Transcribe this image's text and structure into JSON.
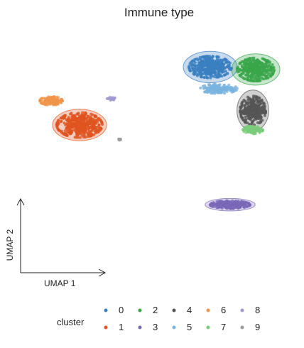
{
  "chart_data": {
    "type": "scatter",
    "title": "Immune type",
    "xlabel": "UMAP 1",
    "ylabel": "UMAP 2",
    "xlim": [
      0,
      100
    ],
    "ylim": [
      0,
      100
    ],
    "grid": false,
    "legend": {
      "title": "cluster",
      "placement": "bottom",
      "entries": [
        "0",
        "1",
        "2",
        "3",
        "4",
        "5",
        "6",
        "7",
        "8",
        "9"
      ]
    },
    "series": [
      {
        "name": "0",
        "color": "#3a7fc1",
        "cx": 69,
        "cy": 84,
        "rx": 7.5,
        "ry": 4.5,
        "n": 420,
        "hull": true,
        "hull_rx": 9.5,
        "hull_ry": 6.5
      },
      {
        "name": "1",
        "color": "#e0541f",
        "cx": 23,
        "cy": 60,
        "rx": 8,
        "ry": 5.2,
        "n": 420,
        "hull": true,
        "hull_rx": 9.5,
        "hull_ry": 6.5
      },
      {
        "name": "2",
        "color": "#3aa64a",
        "cx": 85,
        "cy": 83,
        "rx": 6.5,
        "ry": 4.8,
        "n": 380,
        "hull": true,
        "hull_rx": 8.5,
        "hull_ry": 6.5
      },
      {
        "name": "3",
        "color": "#7a68b8",
        "cx": 76,
        "cy": 27,
        "rx": 7,
        "ry": 1.6,
        "n": 260,
        "hull": true,
        "hull_rx": 8.8,
        "hull_ry": 2.6
      },
      {
        "name": "4",
        "color": "#555555",
        "cx": 84,
        "cy": 66,
        "rx": 4.5,
        "ry": 6,
        "n": 300,
        "hull": true,
        "hull_rx": 5.6,
        "hull_ry": 8.5
      },
      {
        "name": "5",
        "color": "#79b4e0",
        "cx": 72,
        "cy": 75,
        "rx": 6.5,
        "ry": 2,
        "n": 160,
        "hull": false,
        "hull_rx": 0,
        "hull_ry": 0
      },
      {
        "name": "6",
        "color": "#f0954a",
        "cx": 13,
        "cy": 70,
        "rx": 4,
        "ry": 1.8,
        "n": 120,
        "hull": false,
        "hull_rx": 0,
        "hull_ry": 0
      },
      {
        "name": "7",
        "color": "#7acc7a",
        "cx": 84,
        "cy": 58,
        "rx": 3.5,
        "ry": 1.6,
        "n": 110,
        "hull": false,
        "hull_rx": 0,
        "hull_ry": 0
      },
      {
        "name": "8",
        "color": "#a09ad0",
        "cx": 34,
        "cy": 71,
        "rx": 1.5,
        "ry": 0.8,
        "n": 25,
        "hull": false,
        "hull_rx": 0,
        "hull_ry": 0
      },
      {
        "name": "9",
        "color": "#9a9a9a",
        "cx": 37,
        "cy": 54,
        "rx": 0.5,
        "ry": 0.3,
        "n": 6,
        "hull": false,
        "hull_rx": 0,
        "hull_ry": 0
      }
    ]
  }
}
